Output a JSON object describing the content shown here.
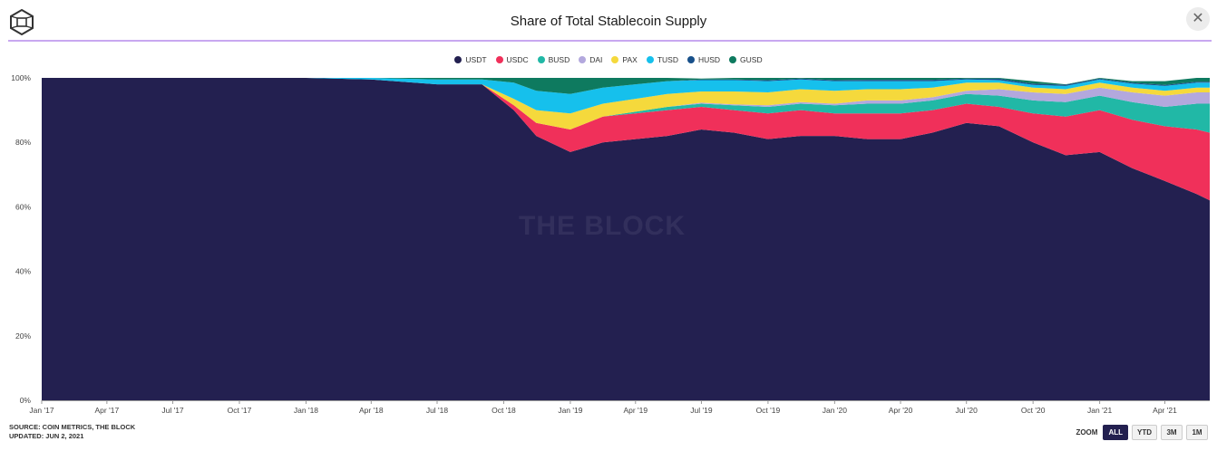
{
  "header": {
    "title": "Share of Total Stablecoin Supply",
    "close_label": "✕"
  },
  "watermark": "THE BLOCK",
  "footer": {
    "source_line1": "SOURCE: COIN METRICS, THE BLOCK",
    "source_line2": "UPDATED: JUN 2, 2021"
  },
  "zoom": {
    "label": "ZOOM",
    "options": [
      "ALL",
      "YTD",
      "3M",
      "1M"
    ],
    "selected": "ALL"
  },
  "colors": {
    "USDT": "#232050",
    "USDC": "#f0305a",
    "BUSD": "#21b8a6",
    "DAI": "#b3a8dd",
    "PAX": "#f5d93c",
    "TUSD": "#16c0ec",
    "HUSD": "#18508a",
    "GUSD": "#0e7a5f"
  },
  "chart_data": {
    "type": "area",
    "stacked": true,
    "title": "Share of Total Stablecoin Supply",
    "xlabel": "",
    "ylabel": "",
    "ylim": [
      0,
      100
    ],
    "y_ticks": [
      "0%",
      "20%",
      "40%",
      "60%",
      "80%",
      "100%"
    ],
    "x_ticks": [
      "Jan '17",
      "Apr '17",
      "Jul '17",
      "Oct '17",
      "Jan '18",
      "Apr '18",
      "Jul '18",
      "Oct '18",
      "Jan '19",
      "Apr '19",
      "Jul '19",
      "Oct '19",
      "Jan '20",
      "Apr '20",
      "Jul '20",
      "Oct '20",
      "Jan '21",
      "Apr '21"
    ],
    "x": [
      "2017-01-01",
      "2017-04-01",
      "2017-07-01",
      "2017-10-01",
      "2018-01-01",
      "2018-04-01",
      "2018-07-01",
      "2018-09-01",
      "2018-10-15",
      "2018-11-15",
      "2019-01-01",
      "2019-02-15",
      "2019-04-01",
      "2019-05-15",
      "2019-07-01",
      "2019-08-15",
      "2019-10-01",
      "2019-11-15",
      "2020-01-01",
      "2020-02-15",
      "2020-04-01",
      "2020-05-15",
      "2020-07-01",
      "2020-08-15",
      "2020-10-01",
      "2020-11-15",
      "2021-01-01",
      "2021-02-15",
      "2021-04-01",
      "2021-05-15",
      "2021-06-02"
    ],
    "legend_position": "top-center",
    "grid": false,
    "series": [
      {
        "name": "USDT",
        "values": [
          100,
          100,
          100,
          100,
          100,
          99.5,
          98,
          98,
          90,
          82,
          77,
          80,
          81,
          82,
          84,
          83,
          81,
          82,
          82,
          81,
          81,
          83,
          86,
          85,
          80,
          76,
          77,
          72,
          68,
          64,
          62
        ]
      },
      {
        "name": "USDC",
        "values": [
          0,
          0,
          0,
          0,
          0,
          0,
          0,
          0,
          1.5,
          4,
          7,
          8,
          8,
          8,
          7,
          7,
          8,
          8,
          7,
          8,
          8,
          7,
          6,
          6,
          9,
          12,
          13,
          15,
          17,
          20,
          21
        ]
      },
      {
        "name": "BUSD",
        "values": [
          0,
          0,
          0,
          0,
          0,
          0,
          0,
          0,
          0,
          0,
          0,
          0,
          0.5,
          1,
          1,
          1.5,
          2,
          2,
          2.5,
          3,
          3,
          3,
          3,
          3.5,
          4,
          4.5,
          4.5,
          5.5,
          6,
          8,
          9
        ]
      },
      {
        "name": "DAI",
        "values": [
          0,
          0,
          0,
          0,
          0,
          0,
          0,
          0,
          0,
          0,
          0,
          0,
          0,
          0,
          0.3,
          0.3,
          0.5,
          0.5,
          0.5,
          1,
          1,
          1,
          1,
          2,
          2.5,
          2.5,
          2.5,
          3,
          3.5,
          3.5,
          3.5
        ]
      },
      {
        "name": "PAX",
        "values": [
          0,
          0,
          0,
          0,
          0,
          0,
          0,
          0,
          2,
          4,
          5,
          4,
          4,
          4,
          3.5,
          4,
          4,
          4,
          4,
          3.5,
          3.5,
          3,
          2.5,
          2,
          1.5,
          1.5,
          1.5,
          1.5,
          1.5,
          1.5,
          1.5
        ]
      },
      {
        "name": "TUSD",
        "values": [
          0,
          0,
          0,
          0,
          0,
          0.5,
          1.5,
          1.5,
          5,
          6,
          6,
          5,
          4.5,
          4,
          3.5,
          3.5,
          3.5,
          3,
          3,
          2.5,
          2.5,
          2,
          1,
          0.8,
          0.8,
          1,
          1,
          1.2,
          1.5,
          1.5,
          1.5
        ]
      },
      {
        "name": "HUSD",
        "values": [
          0,
          0,
          0,
          0,
          0,
          0,
          0,
          0,
          0,
          0,
          0,
          0,
          0,
          0,
          0.2,
          0.2,
          0.3,
          0.3,
          0.3,
          0.4,
          0.4,
          0.4,
          0.3,
          0.5,
          0.4,
          0.4,
          0.3,
          0.3,
          0.3,
          0.3,
          0.3
        ]
      },
      {
        "name": "GUSD",
        "values": [
          0,
          0,
          0,
          0,
          0,
          0,
          0.5,
          0.5,
          1.5,
          4,
          5,
          3,
          2,
          1,
          0.3,
          0.5,
          0.7,
          0.2,
          0.7,
          0.6,
          0.6,
          0.6,
          0.2,
          0.2,
          0.8,
          0.1,
          0.2,
          0.5,
          1.2,
          1.2,
          1.2
        ]
      }
    ]
  }
}
